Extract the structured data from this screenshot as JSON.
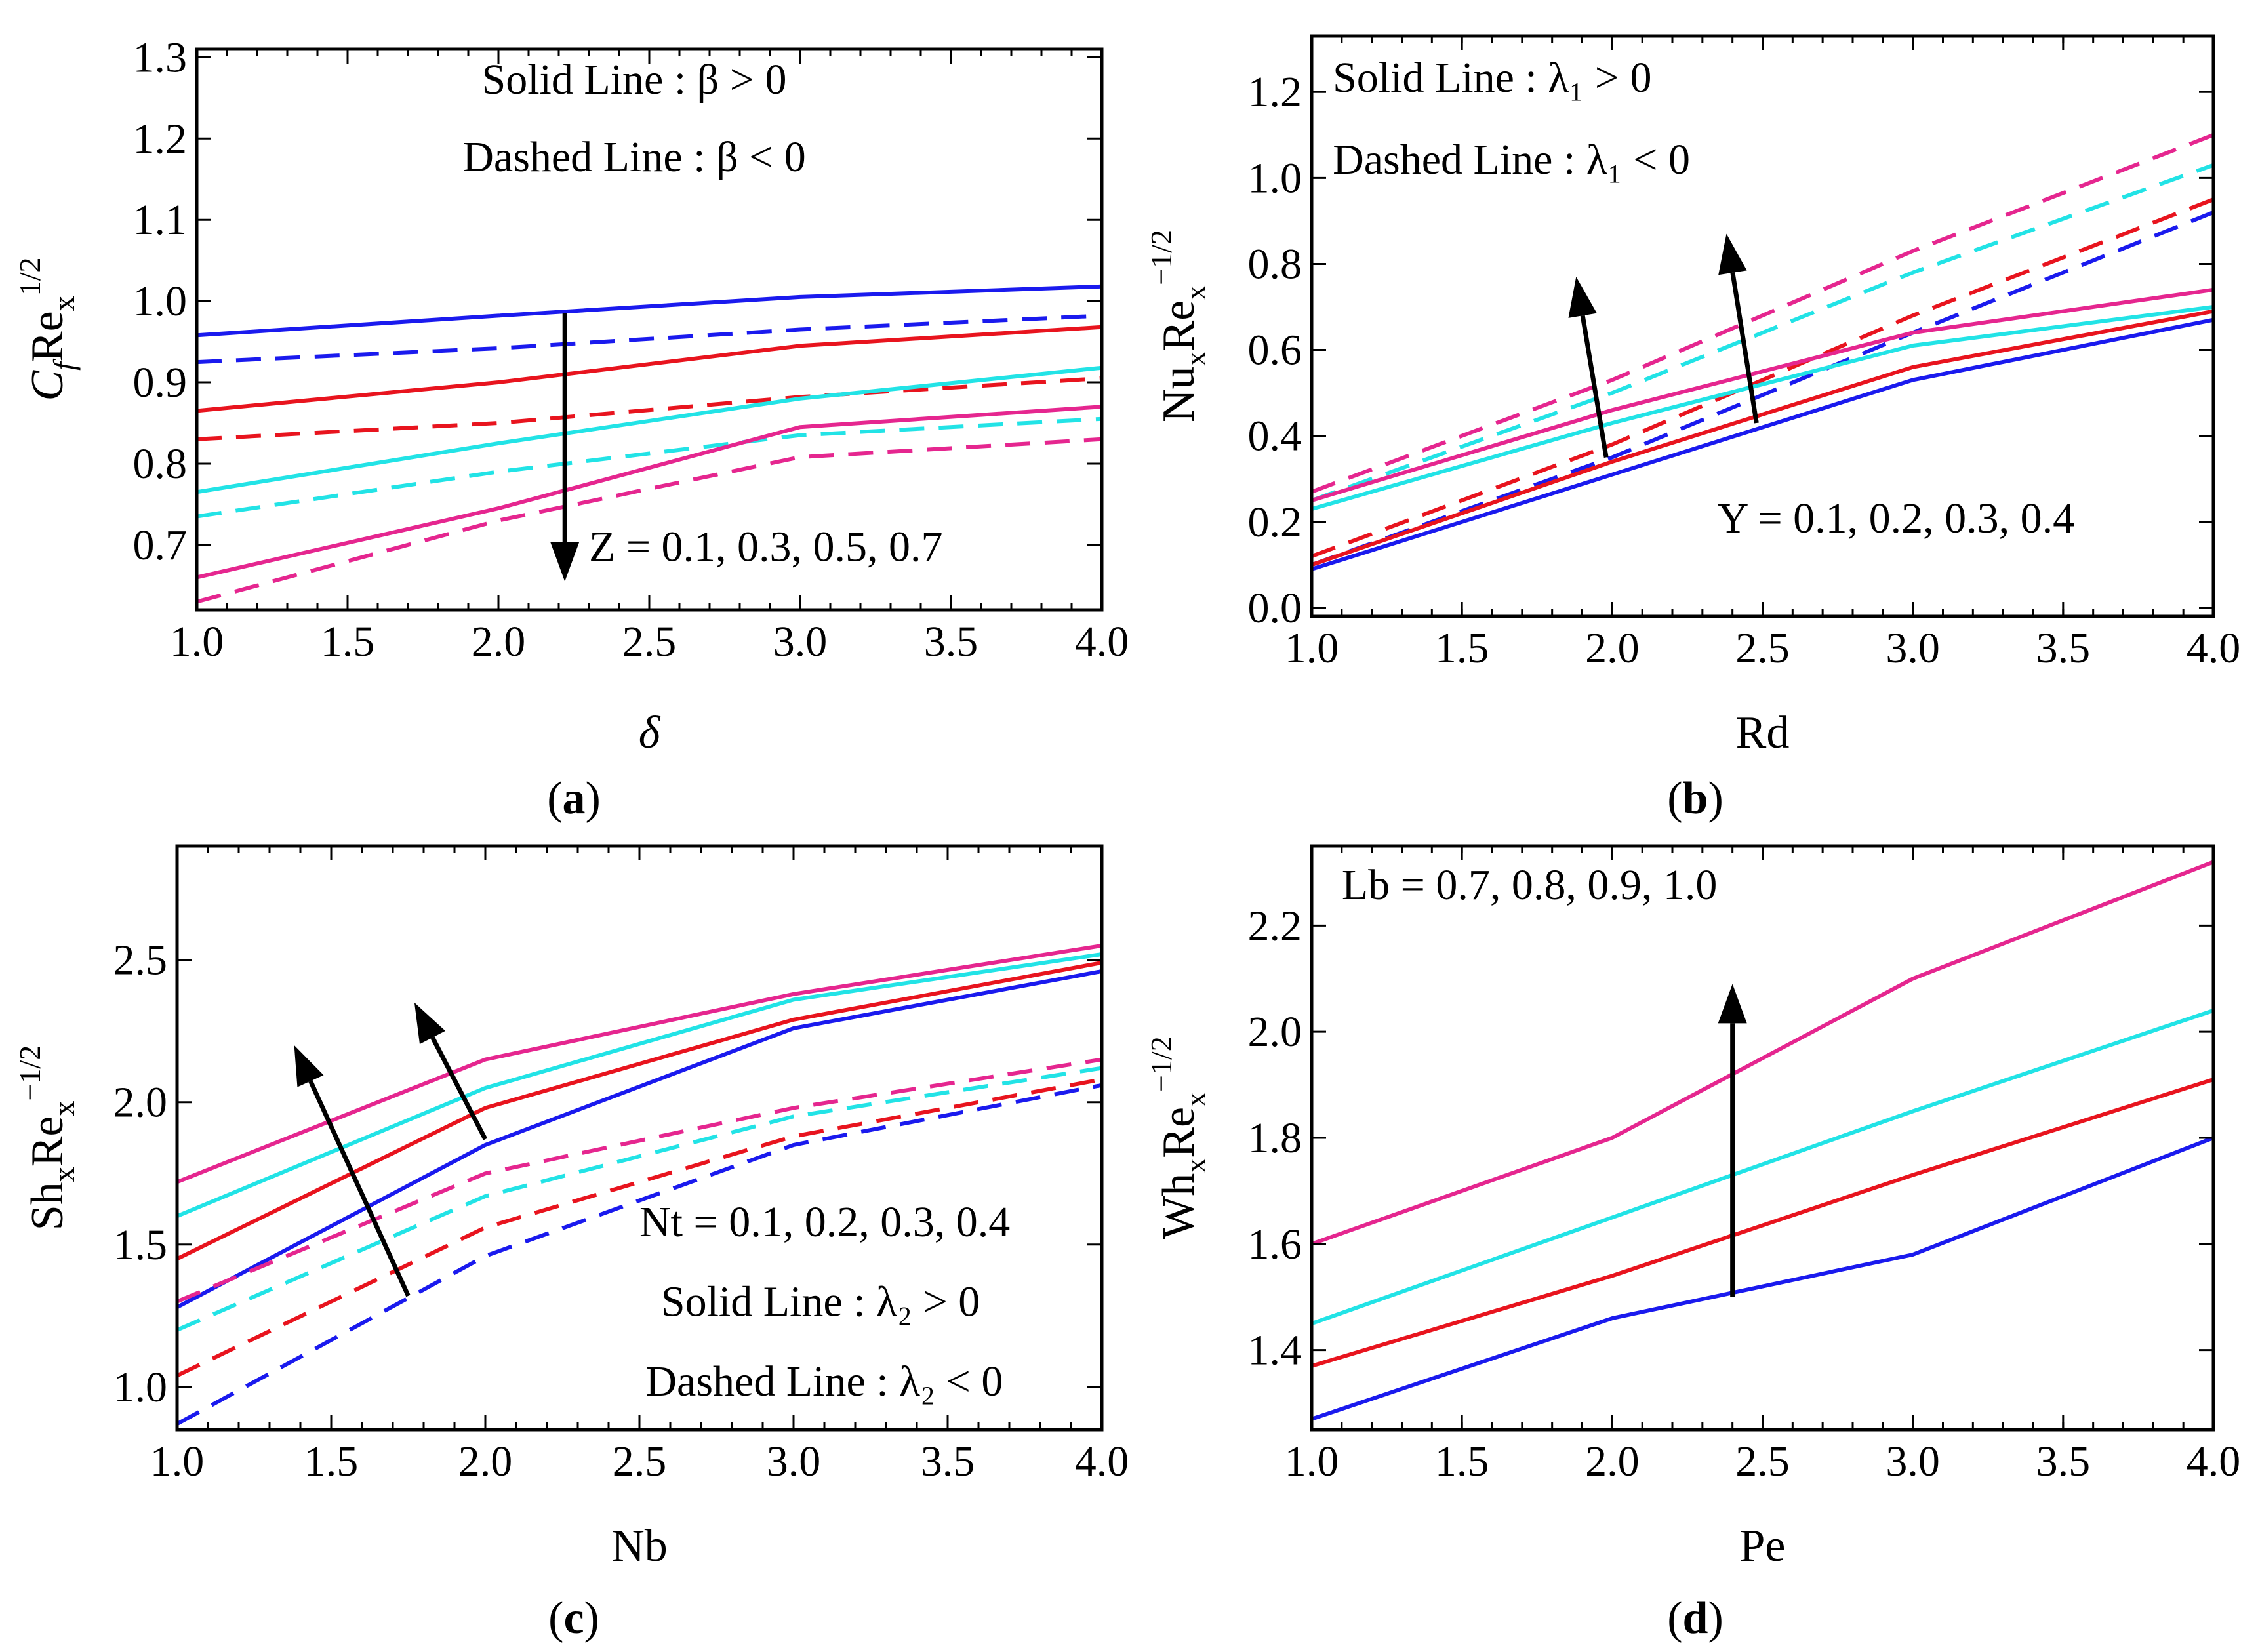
{
  "colors": {
    "blue": "#1a1aee",
    "red": "#e8141e",
    "cyan": "#22e3e6",
    "magenta": "#e5268f",
    "arrow": "#000000"
  },
  "chart_data": [
    {
      "id": "a",
      "type": "line",
      "caption": {
        "open": "(",
        "letter": "a",
        "close": ")"
      },
      "xlabel": "δ",
      "ylabel": {
        "main": "C",
        "sub1": "f",
        "mid": "Re",
        "sub2": "x",
        "sup": "1/2"
      },
      "xlim": [
        1.0,
        4.0
      ],
      "ylim": [
        0.62,
        1.31
      ],
      "xticks": [
        1.0,
        1.5,
        2.0,
        2.5,
        3.0,
        3.5,
        4.0
      ],
      "xtick_labels": [
        "1.0",
        "1.5",
        "2.0",
        "2.5",
        "3.0",
        "3.5",
        "4.0"
      ],
      "yticks": [
        0.7,
        0.8,
        0.9,
        1.0,
        1.1,
        1.2,
        1.3
      ],
      "ytick_labels": [
        "0.7",
        "0.8",
        "0.9",
        "1.0",
        "1.1",
        "1.2",
        "1.3"
      ],
      "annotations": [
        {
          "text": "Solid Line : β > 0",
          "x": 2.45,
          "y": 1.255
        },
        {
          "text": "Dashed Line : β < 0",
          "x": 2.45,
          "y": 1.16
        },
        {
          "text": "Z = 0.1, 0.3, 0.5, 0.7",
          "x": 2.3,
          "y": 0.68
        }
      ],
      "arrows": [
        {
          "from": [
            2.22,
            0.985
          ],
          "to": [
            2.22,
            0.655
          ]
        }
      ],
      "x": [
        1.0,
        2.0,
        3.0,
        4.0
      ],
      "series": [
        {
          "name": "Z = 0.1 (β > 0)",
          "color": "blue",
          "dash": false,
          "values": [
            0.958,
            0.982,
            1.005,
            1.018
          ]
        },
        {
          "name": "Z = 0.1 (β < 0)",
          "color": "blue",
          "dash": true,
          "values": [
            0.925,
            0.942,
            0.965,
            0.982
          ]
        },
        {
          "name": "Z = 0.3 (β > 0)",
          "color": "red",
          "dash": false,
          "values": [
            0.865,
            0.9,
            0.945,
            0.968
          ]
        },
        {
          "name": "Z = 0.3 (β < 0)",
          "color": "red",
          "dash": true,
          "values": [
            0.83,
            0.85,
            0.882,
            0.905
          ]
        },
        {
          "name": "Z = 0.5 (β > 0)",
          "color": "cyan",
          "dash": false,
          "values": [
            0.765,
            0.825,
            0.88,
            0.918
          ]
        },
        {
          "name": "Z = 0.5 (β < 0)",
          "color": "cyan",
          "dash": true,
          "values": [
            0.735,
            0.79,
            0.835,
            0.855
          ]
        },
        {
          "name": "Z = 0.7 (β > 0)",
          "color": "magenta",
          "dash": false,
          "values": [
            0.66,
            0.745,
            0.845,
            0.87
          ]
        },
        {
          "name": "Z = 0.7 (β < 0)",
          "color": "magenta",
          "dash": true,
          "values": [
            0.63,
            0.73,
            0.808,
            0.83
          ]
        }
      ]
    },
    {
      "id": "b",
      "type": "line",
      "caption": {
        "open": "(",
        "letter": "b",
        "close": ")"
      },
      "xlabel": "Rd",
      "ylabel": {
        "main": "Nu",
        "sub1": "x",
        "mid": "Re",
        "sub2": "x",
        "sup": "−1/2"
      },
      "xlim": [
        1.0,
        4.0
      ],
      "ylim": [
        -0.02,
        1.33
      ],
      "xticks": [
        1.0,
        1.5,
        2.0,
        2.5,
        3.0,
        3.5,
        4.0
      ],
      "xtick_labels": [
        "1.0",
        "1.5",
        "2.0",
        "2.5",
        "3.0",
        "3.5",
        "4.0"
      ],
      "yticks": [
        0.0,
        0.2,
        0.4,
        0.6,
        0.8,
        1.0,
        1.2
      ],
      "ytick_labels": [
        "0.0",
        "0.2",
        "0.4",
        "0.6",
        "0.8",
        "1.0",
        "1.2"
      ],
      "annotations": [
        {
          "text": "Solid Line : λ₁ > 0",
          "x": 1.07,
          "y": 1.2
        },
        {
          "text": "Dashed Line : λ₁ < 0",
          "x": 1.07,
          "y": 1.01
        },
        {
          "text": "Υ = 0.1, 0.2, 0.3, 0.4",
          "x": 2.35,
          "y": 0.175
        }
      ],
      "arrows": [
        {
          "from": [
            1.98,
            0.35
          ],
          "to": [
            1.88,
            0.77
          ]
        },
        {
          "from": [
            2.48,
            0.43
          ],
          "to": [
            2.38,
            0.87
          ]
        }
      ],
      "x": [
        1.0,
        2.0,
        3.0,
        4.0
      ],
      "series": [
        {
          "name": "Υ = 0.1 (λ₁ > 0)",
          "color": "blue",
          "dash": false,
          "values": [
            0.09,
            0.31,
            0.53,
            0.67
          ]
        },
        {
          "name": "Υ = 0.1 (λ₁ < 0)",
          "color": "blue",
          "dash": true,
          "values": [
            0.1,
            0.35,
            0.64,
            0.92
          ]
        },
        {
          "name": "Υ = 0.2 (λ₁ > 0)",
          "color": "red",
          "dash": false,
          "values": [
            0.1,
            0.34,
            0.56,
            0.69
          ]
        },
        {
          "name": "Υ = 0.2 (λ₁ < 0)",
          "color": "red",
          "dash": true,
          "values": [
            0.12,
            0.38,
            0.68,
            0.95
          ]
        },
        {
          "name": "Υ = 0.3 (λ₁ > 0)",
          "color": "cyan",
          "dash": false,
          "values": [
            0.23,
            0.43,
            0.61,
            0.7
          ]
        },
        {
          "name": "Υ = 0.3 (λ₁ < 0)",
          "color": "cyan",
          "dash": true,
          "values": [
            0.25,
            0.5,
            0.78,
            1.03
          ]
        },
        {
          "name": "Υ = 0.4 (λ₁ > 0)",
          "color": "magenta",
          "dash": false,
          "values": [
            0.25,
            0.46,
            0.64,
            0.74
          ]
        },
        {
          "name": "Υ = 0.4 (λ₁ < 0)",
          "color": "magenta",
          "dash": true,
          "values": [
            0.27,
            0.53,
            0.83,
            1.1
          ]
        }
      ]
    },
    {
      "id": "c",
      "type": "line",
      "caption": {
        "open": "(",
        "letter": "c",
        "close": ")"
      },
      "xlabel": "Nb",
      "ylabel": {
        "main": "Sh",
        "sub1": "x",
        "mid": "Re",
        "sub2": "x",
        "sup": "−1/2"
      },
      "xlim": [
        1.0,
        4.0
      ],
      "ylim": [
        0.85,
        2.9
      ],
      "xticks": [
        1.0,
        1.5,
        2.0,
        2.5,
        3.0,
        3.5,
        4.0
      ],
      "xtick_labels": [
        "1.0",
        "1.5",
        "2.0",
        "2.5",
        "3.0",
        "3.5",
        "4.0"
      ],
      "yticks": [
        1.0,
        1.5,
        2.0,
        2.5
      ],
      "ytick_labels": [
        "1.0",
        "1.5",
        "2.0",
        "2.5"
      ],
      "annotations": [
        {
          "text": "Nt = 0.1, 0.2, 0.3, 0.4",
          "x": 2.5,
          "y": 1.53
        },
        {
          "text": "Solid Line :  λ₂ > 0",
          "x": 2.57,
          "y": 1.25
        },
        {
          "text": "Dashed Line : λ₂ < 0",
          "x": 2.52,
          "y": 0.97
        }
      ],
      "arrows": [
        {
          "from": [
            1.75,
            1.32
          ],
          "to": [
            1.38,
            2.2
          ]
        },
        {
          "from": [
            2.0,
            1.87
          ],
          "to": [
            1.77,
            2.35
          ]
        }
      ],
      "x": [
        1.0,
        2.0,
        3.0,
        4.0
      ],
      "series": [
        {
          "name": "Nt = 0.1 (λ₂ > 0)",
          "color": "blue",
          "dash": false,
          "values": [
            1.28,
            1.85,
            2.26,
            2.46
          ]
        },
        {
          "name": "Nt = 0.1 (λ₂ < 0)",
          "color": "blue",
          "dash": true,
          "values": [
            0.87,
            1.46,
            1.85,
            2.06
          ]
        },
        {
          "name": "Nt = 0.2 (λ₂ > 0)",
          "color": "red",
          "dash": false,
          "values": [
            1.45,
            1.98,
            2.29,
            2.49
          ]
        },
        {
          "name": "Nt = 0.2 (λ₂ < 0)",
          "color": "red",
          "dash": true,
          "values": [
            1.04,
            1.56,
            1.88,
            2.08
          ]
        },
        {
          "name": "Nt = 0.3 (λ₂ > 0)",
          "color": "cyan",
          "dash": false,
          "values": [
            1.6,
            2.05,
            2.36,
            2.52
          ]
        },
        {
          "name": "Nt = 0.3 (λ₂ < 0)",
          "color": "cyan",
          "dash": true,
          "values": [
            1.2,
            1.67,
            1.95,
            2.12
          ]
        },
        {
          "name": "Nt = 0.4 (λ₂ > 0)",
          "color": "magenta",
          "dash": false,
          "values": [
            1.72,
            2.15,
            2.38,
            2.55
          ]
        },
        {
          "name": "Nt = 0.4 (λ₂ < 0)",
          "color": "magenta",
          "dash": true,
          "values": [
            1.3,
            1.75,
            1.98,
            2.15
          ]
        }
      ]
    },
    {
      "id": "d",
      "type": "line",
      "caption": {
        "open": "(",
        "letter": "d",
        "close": ")"
      },
      "xlabel": "Pe",
      "ylabel": {
        "main": "Wh",
        "sub1": "x",
        "mid": "Re",
        "sub2": "x",
        "sup": "−1/2"
      },
      "xlim": [
        1.0,
        4.0
      ],
      "ylim": [
        1.25,
        2.35
      ],
      "xticks": [
        1.0,
        1.5,
        2.0,
        2.5,
        3.0,
        3.5,
        4.0
      ],
      "xtick_labels": [
        "1.0",
        "1.5",
        "2.0",
        "2.5",
        "3.0",
        "3.5",
        "4.0"
      ],
      "yticks": [
        1.4,
        1.6,
        1.8,
        2.0,
        2.2
      ],
      "ytick_labels": [
        "1.4",
        "1.6",
        "1.8",
        "2.0",
        "2.2"
      ],
      "annotations": [
        {
          "text": "Lb = 0.7, 0.8, 0.9, 1.0",
          "x": 1.1,
          "y": 2.25
        }
      ],
      "arrows": [
        {
          "from": [
            2.4,
            1.5
          ],
          "to": [
            2.4,
            2.09
          ]
        }
      ],
      "x": [
        1.0,
        2.0,
        3.0,
        4.0
      ],
      "series": [
        {
          "name": "Lb = 0.7",
          "color": "blue",
          "dash": false,
          "values": [
            1.27,
            1.46,
            1.58,
            1.8
          ]
        },
        {
          "name": "Lb = 0.8",
          "color": "red",
          "dash": false,
          "values": [
            1.37,
            1.54,
            1.73,
            1.91
          ]
        },
        {
          "name": "Lb = 0.9",
          "color": "cyan",
          "dash": false,
          "values": [
            1.45,
            1.65,
            1.85,
            2.04
          ]
        },
        {
          "name": "Lb = 1.0",
          "color": "magenta",
          "dash": false,
          "values": [
            1.6,
            1.8,
            2.1,
            2.32
          ]
        }
      ]
    }
  ]
}
